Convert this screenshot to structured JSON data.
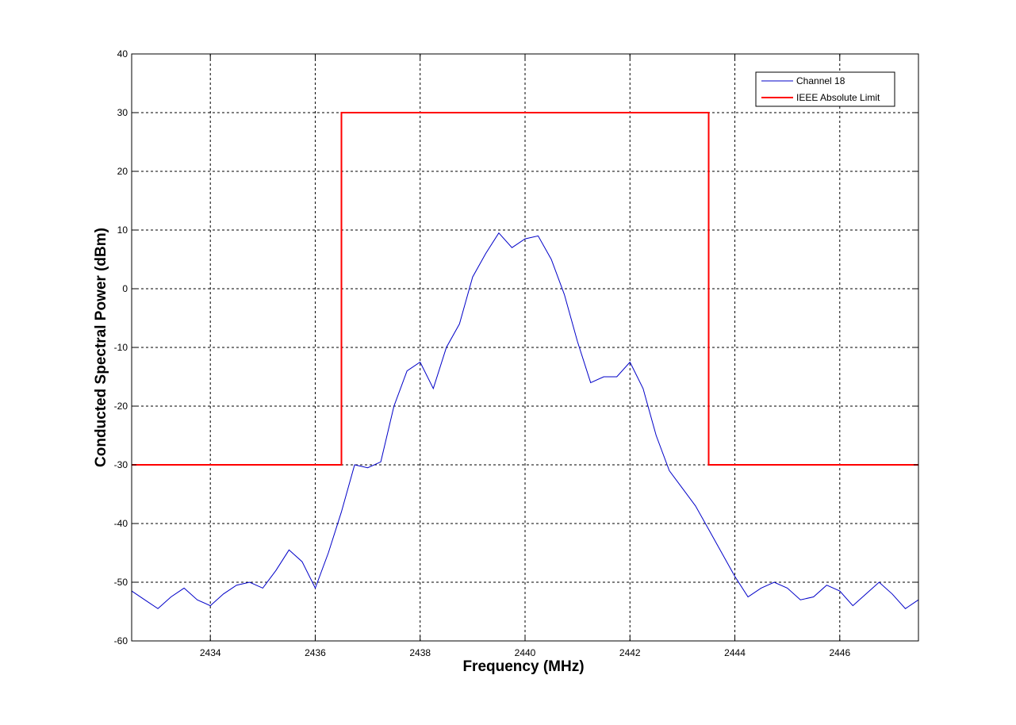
{
  "chart_data": {
    "type": "line",
    "xlabel": "Frequency (MHz)",
    "ylabel": "Conducted Spectral Power (dBm)",
    "xlim": [
      2432.5,
      2447.5
    ],
    "ylim": [
      -60,
      40
    ],
    "xticks": [
      2434,
      2436,
      2438,
      2440,
      2442,
      2444,
      2446
    ],
    "yticks": [
      -60,
      -50,
      -40,
      -30,
      -20,
      -10,
      0,
      10,
      20,
      30,
      40
    ],
    "grid": true,
    "legend_position": "top-right",
    "series": [
      {
        "name": "Channel 18",
        "color": "#0000c8",
        "x": [
          2432.5,
          2432.75,
          2433.0,
          2433.25,
          2433.5,
          2433.75,
          2434.0,
          2434.25,
          2434.5,
          2434.75,
          2435.0,
          2435.25,
          2435.5,
          2435.75,
          2436.0,
          2436.25,
          2436.5,
          2436.75,
          2437.0,
          2437.25,
          2437.5,
          2437.75,
          2438.0,
          2438.25,
          2438.5,
          2438.75,
          2439.0,
          2439.25,
          2439.5,
          2439.75,
          2440.0,
          2440.25,
          2440.5,
          2440.75,
          2441.0,
          2441.25,
          2441.5,
          2441.75,
          2442.0,
          2442.25,
          2442.5,
          2442.75,
          2443.0,
          2443.25,
          2443.5,
          2443.75,
          2444.0,
          2444.25,
          2444.5,
          2444.75,
          2445.0,
          2445.25,
          2445.5,
          2445.75,
          2446.0,
          2446.25,
          2446.5,
          2446.75,
          2447.0,
          2447.25,
          2447.5
        ],
        "y": [
          -51.5,
          -53,
          -54.5,
          -52.5,
          -51,
          -53,
          -54,
          -52,
          -50.5,
          -50,
          -51,
          -48,
          -44.5,
          -46.5,
          -51,
          -45,
          -38,
          -30,
          -30.5,
          -29.5,
          -20,
          -14,
          -12.5,
          -17,
          -10,
          -6,
          2,
          6,
          9.5,
          7,
          8.5,
          9,
          5,
          -1,
          -9,
          -16,
          -15,
          -15,
          -12.5,
          -17,
          -25,
          -31,
          -34,
          -37,
          -41,
          -45,
          -49,
          -52.5,
          -51,
          -50,
          -51,
          -53,
          -52.5,
          -50.5,
          -51.5,
          -54,
          -52,
          -50,
          -52,
          -54.5,
          -53
        ]
      },
      {
        "name": "IEEE Absolute Limit",
        "color": "#ff0000",
        "x": [
          2432.5,
          2436.5,
          2436.5,
          2443.5,
          2443.5,
          2447.5
        ],
        "y": [
          -30,
          -30,
          30,
          30,
          -30,
          -30
        ]
      }
    ]
  }
}
